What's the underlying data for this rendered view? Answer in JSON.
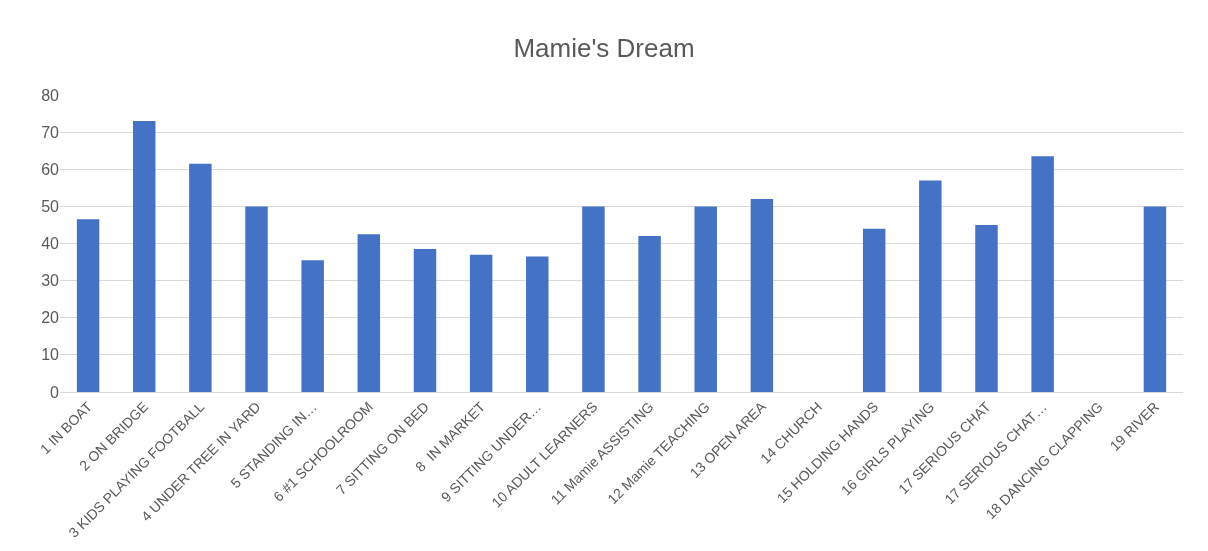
{
  "chart_data": {
    "type": "bar",
    "title": "Mamie's Dream",
    "categories": [
      "1 IN BOAT",
      "2 ON BRIDGE",
      "3 KIDS PLAYING FOOTBALL",
      "4 UNDER TREE IN YARD",
      "5 STANDING IN…",
      "6 #1 SCHOOLROOM",
      "7 SITTING ON BED",
      "8  IN MARKET",
      "9 SITTING UNDER…",
      "10 ADULT LEARNERS",
      "11 Mamie ASSISTING",
      "12 Mamie TEACHING",
      "13 OPEN AREA",
      "14 CHURCH",
      "15 HOLDING HANDS",
      "16 GIRLS PLAYING",
      "17 SERIOUS CHAT",
      "17 SERIOUS CHAT…",
      "18 DANCING CLAPPING",
      "19 RIVER"
    ],
    "values": [
      46.5,
      73,
      61.5,
      50,
      35.5,
      42.5,
      38.5,
      37,
      36.5,
      50,
      42,
      50,
      52,
      null,
      44,
      57,
      45,
      63.5,
      null,
      50
    ],
    "color": "#4472c4",
    "ylim": [
      0,
      80
    ],
    "yticks": [
      0,
      10,
      20,
      30,
      40,
      50,
      60,
      70,
      80
    ],
    "grid": "y"
  }
}
